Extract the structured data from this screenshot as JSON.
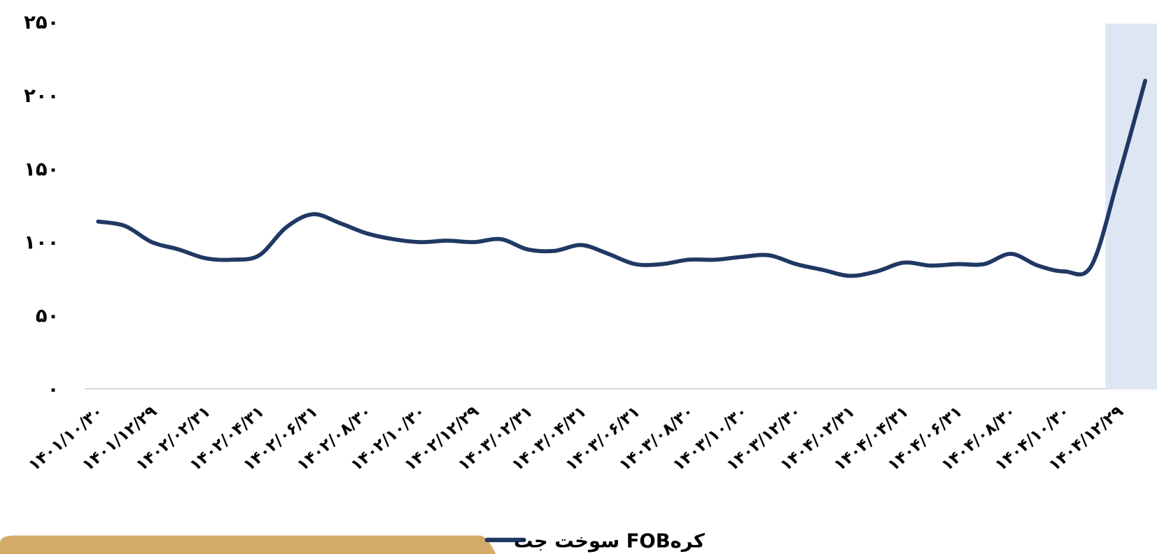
{
  "chart_data": {
    "type": "line",
    "categories": [
      "۱۴۰۱/۱۰/۳۰",
      null,
      "۱۴۰۱/۱۲/۲۹",
      null,
      "۱۴۰۲/۰۲/۳۱",
      null,
      "۱۴۰۲/۰۴/۳۱",
      null,
      "۱۴۰۲/۰۶/۳۱",
      null,
      "۱۴۰۲/۰۸/۳۰",
      null,
      "۱۴۰۲/۱۰/۳۰",
      null,
      "۱۴۰۲/۱۲/۲۹",
      null,
      "۱۴۰۳/۰۲/۳۱",
      null,
      "۱۴۰۳/۰۴/۳۱",
      null,
      "۱۴۰۳/۰۶/۳۱",
      null,
      "۱۴۰۳/۰۸/۳۰",
      null,
      "۱۴۰۳/۱۰/۳۰",
      null,
      "۱۴۰۳/۱۲/۳۰",
      null,
      "۱۴۰۴/۰۲/۳۱",
      null,
      "۱۴۰۴/۰۴/۳۱",
      null,
      "۱۴۰۴/۰۶/۳۱",
      null,
      "۱۴۰۴/۰۸/۳۰",
      null,
      "۱۴۰۴/۱۰/۳۰",
      null,
      "۱۴۰۴/۱۲/۲۹",
      null
    ],
    "series": [
      {
        "name": "سوخت جت  FOBکره",
        "color": "#203864",
        "values": [
          114,
          111,
          100,
          95,
          89,
          88,
          91,
          110,
          119,
          113,
          106,
          102,
          100,
          101,
          100,
          102,
          95,
          94,
          98,
          92,
          85,
          85,
          88,
          88,
          90,
          91,
          85,
          81,
          77,
          80,
          86,
          84,
          85,
          85,
          92,
          84,
          80,
          84,
          144,
          210
        ]
      }
    ],
    "ylim": [
      0,
      250
    ],
    "yticks": [
      {
        "value": 0,
        "label": "۰"
      },
      {
        "value": 50,
        "label": "۵۰"
      },
      {
        "value": 100,
        "label": "۱۰۰"
      },
      {
        "value": 150,
        "label": "۱۵۰"
      },
      {
        "value": 200,
        "label": "۲۰۰"
      },
      {
        "value": 250,
        "label": "۲۵۰"
      }
    ],
    "grid": false
  }
}
